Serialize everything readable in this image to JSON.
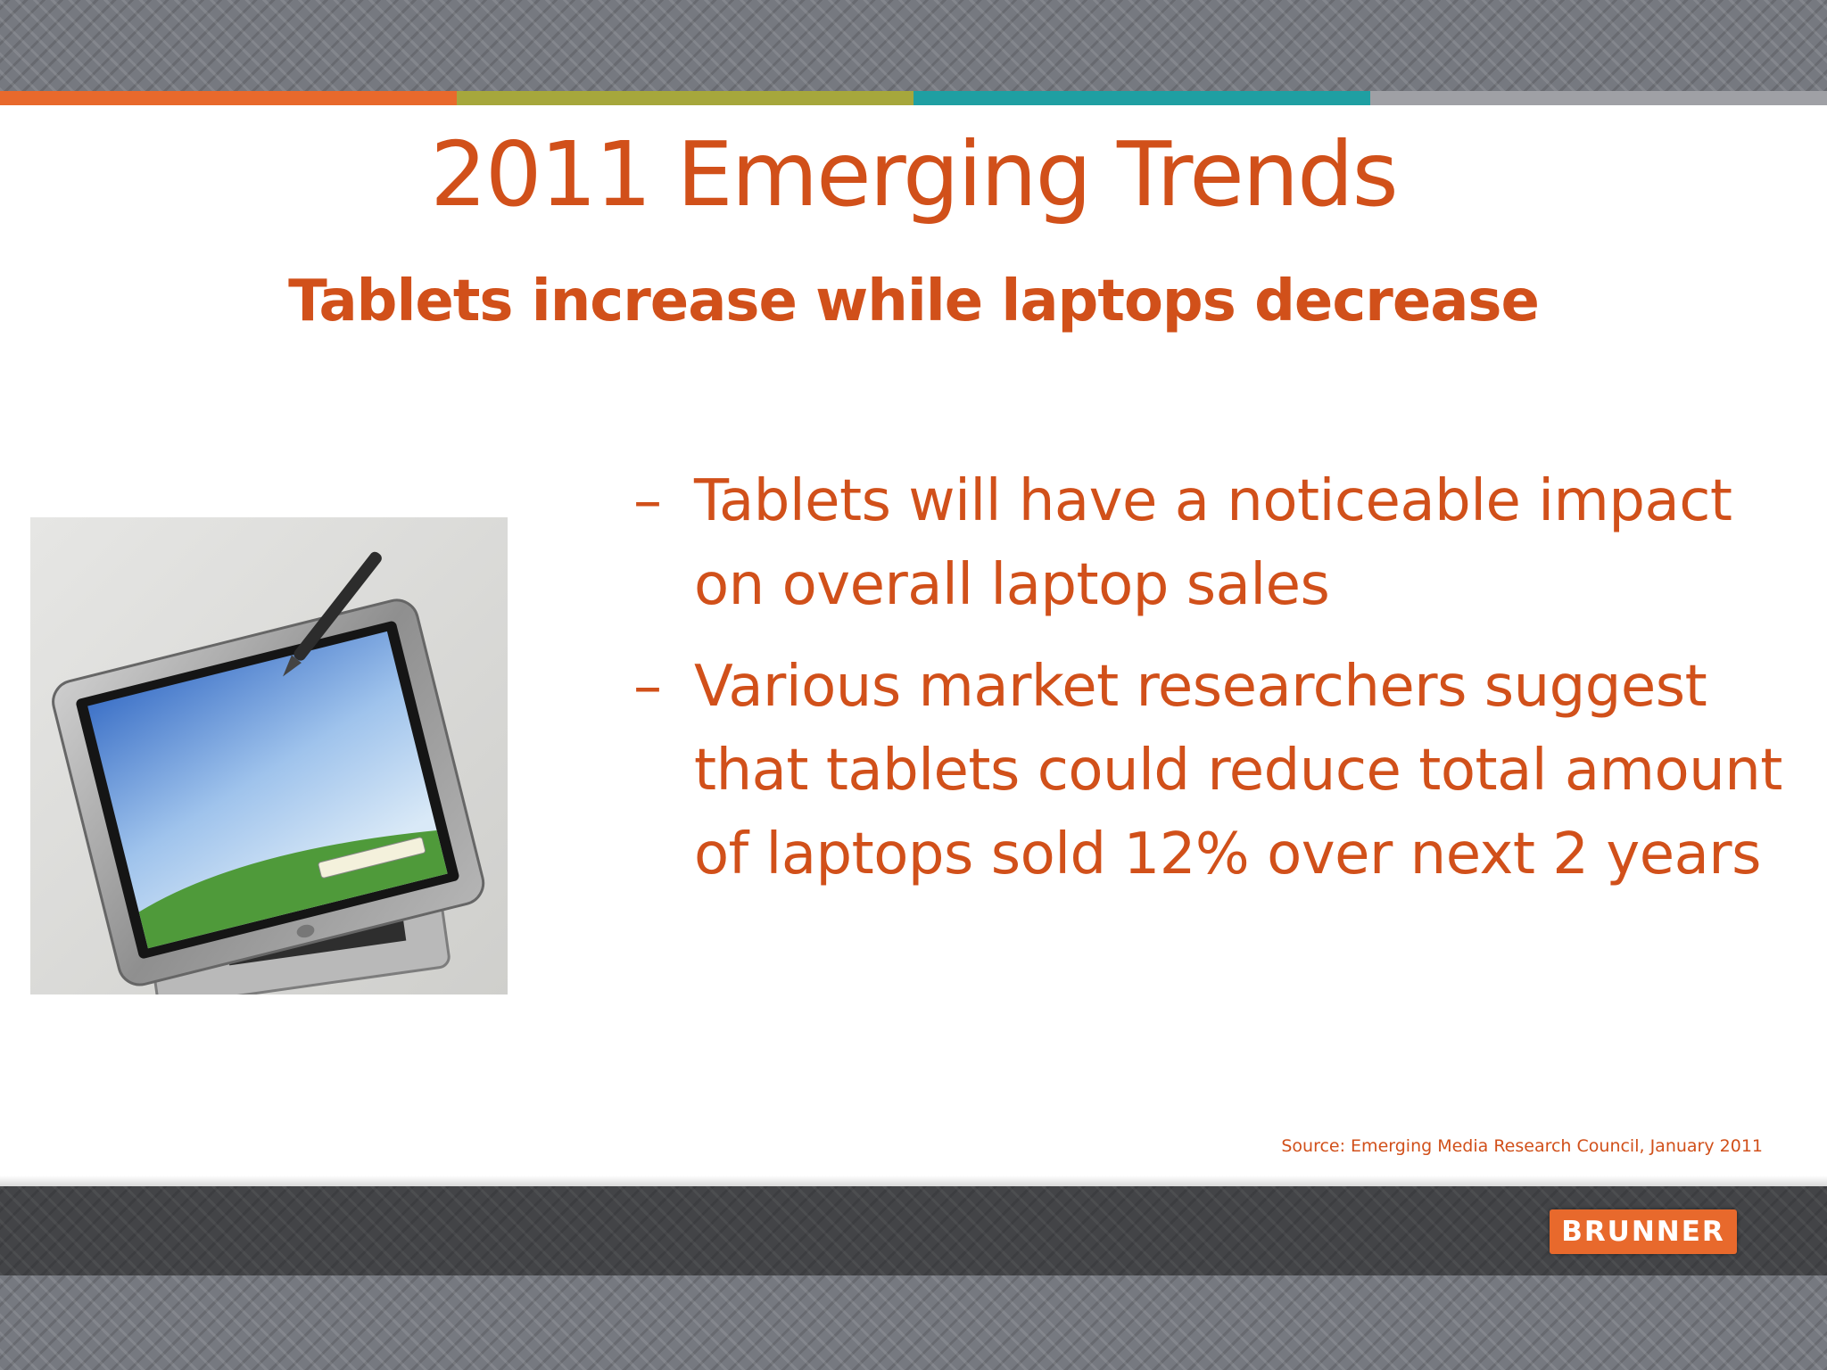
{
  "slide": {
    "title": "2011 Emerging Trends",
    "subtitle": "Tablets increase while laptops decrease",
    "bullets": [
      {
        "marker": "–",
        "text": "Tablets will have a noticeable impact on overall laptop sales"
      },
      {
        "marker": "–",
        "text": "Various market researchers suggest that tablets could reduce total amount of laptops sold 12% over next 2 years"
      }
    ],
    "source": "Source: Emerging Media Research Council, January 2011",
    "image": {
      "subject": "tablet-pc-with-stylus"
    }
  },
  "footer": {
    "logo_text": "BRUNNER"
  },
  "colors": {
    "text_accent": "#d1501a",
    "logo_bg": "#e8692c",
    "stripes": [
      "#e8692c",
      "#a6a73c",
      "#1f9fa2",
      "#9fa0a5"
    ],
    "band_gray": "#767980",
    "footer_dark": "#434447"
  }
}
